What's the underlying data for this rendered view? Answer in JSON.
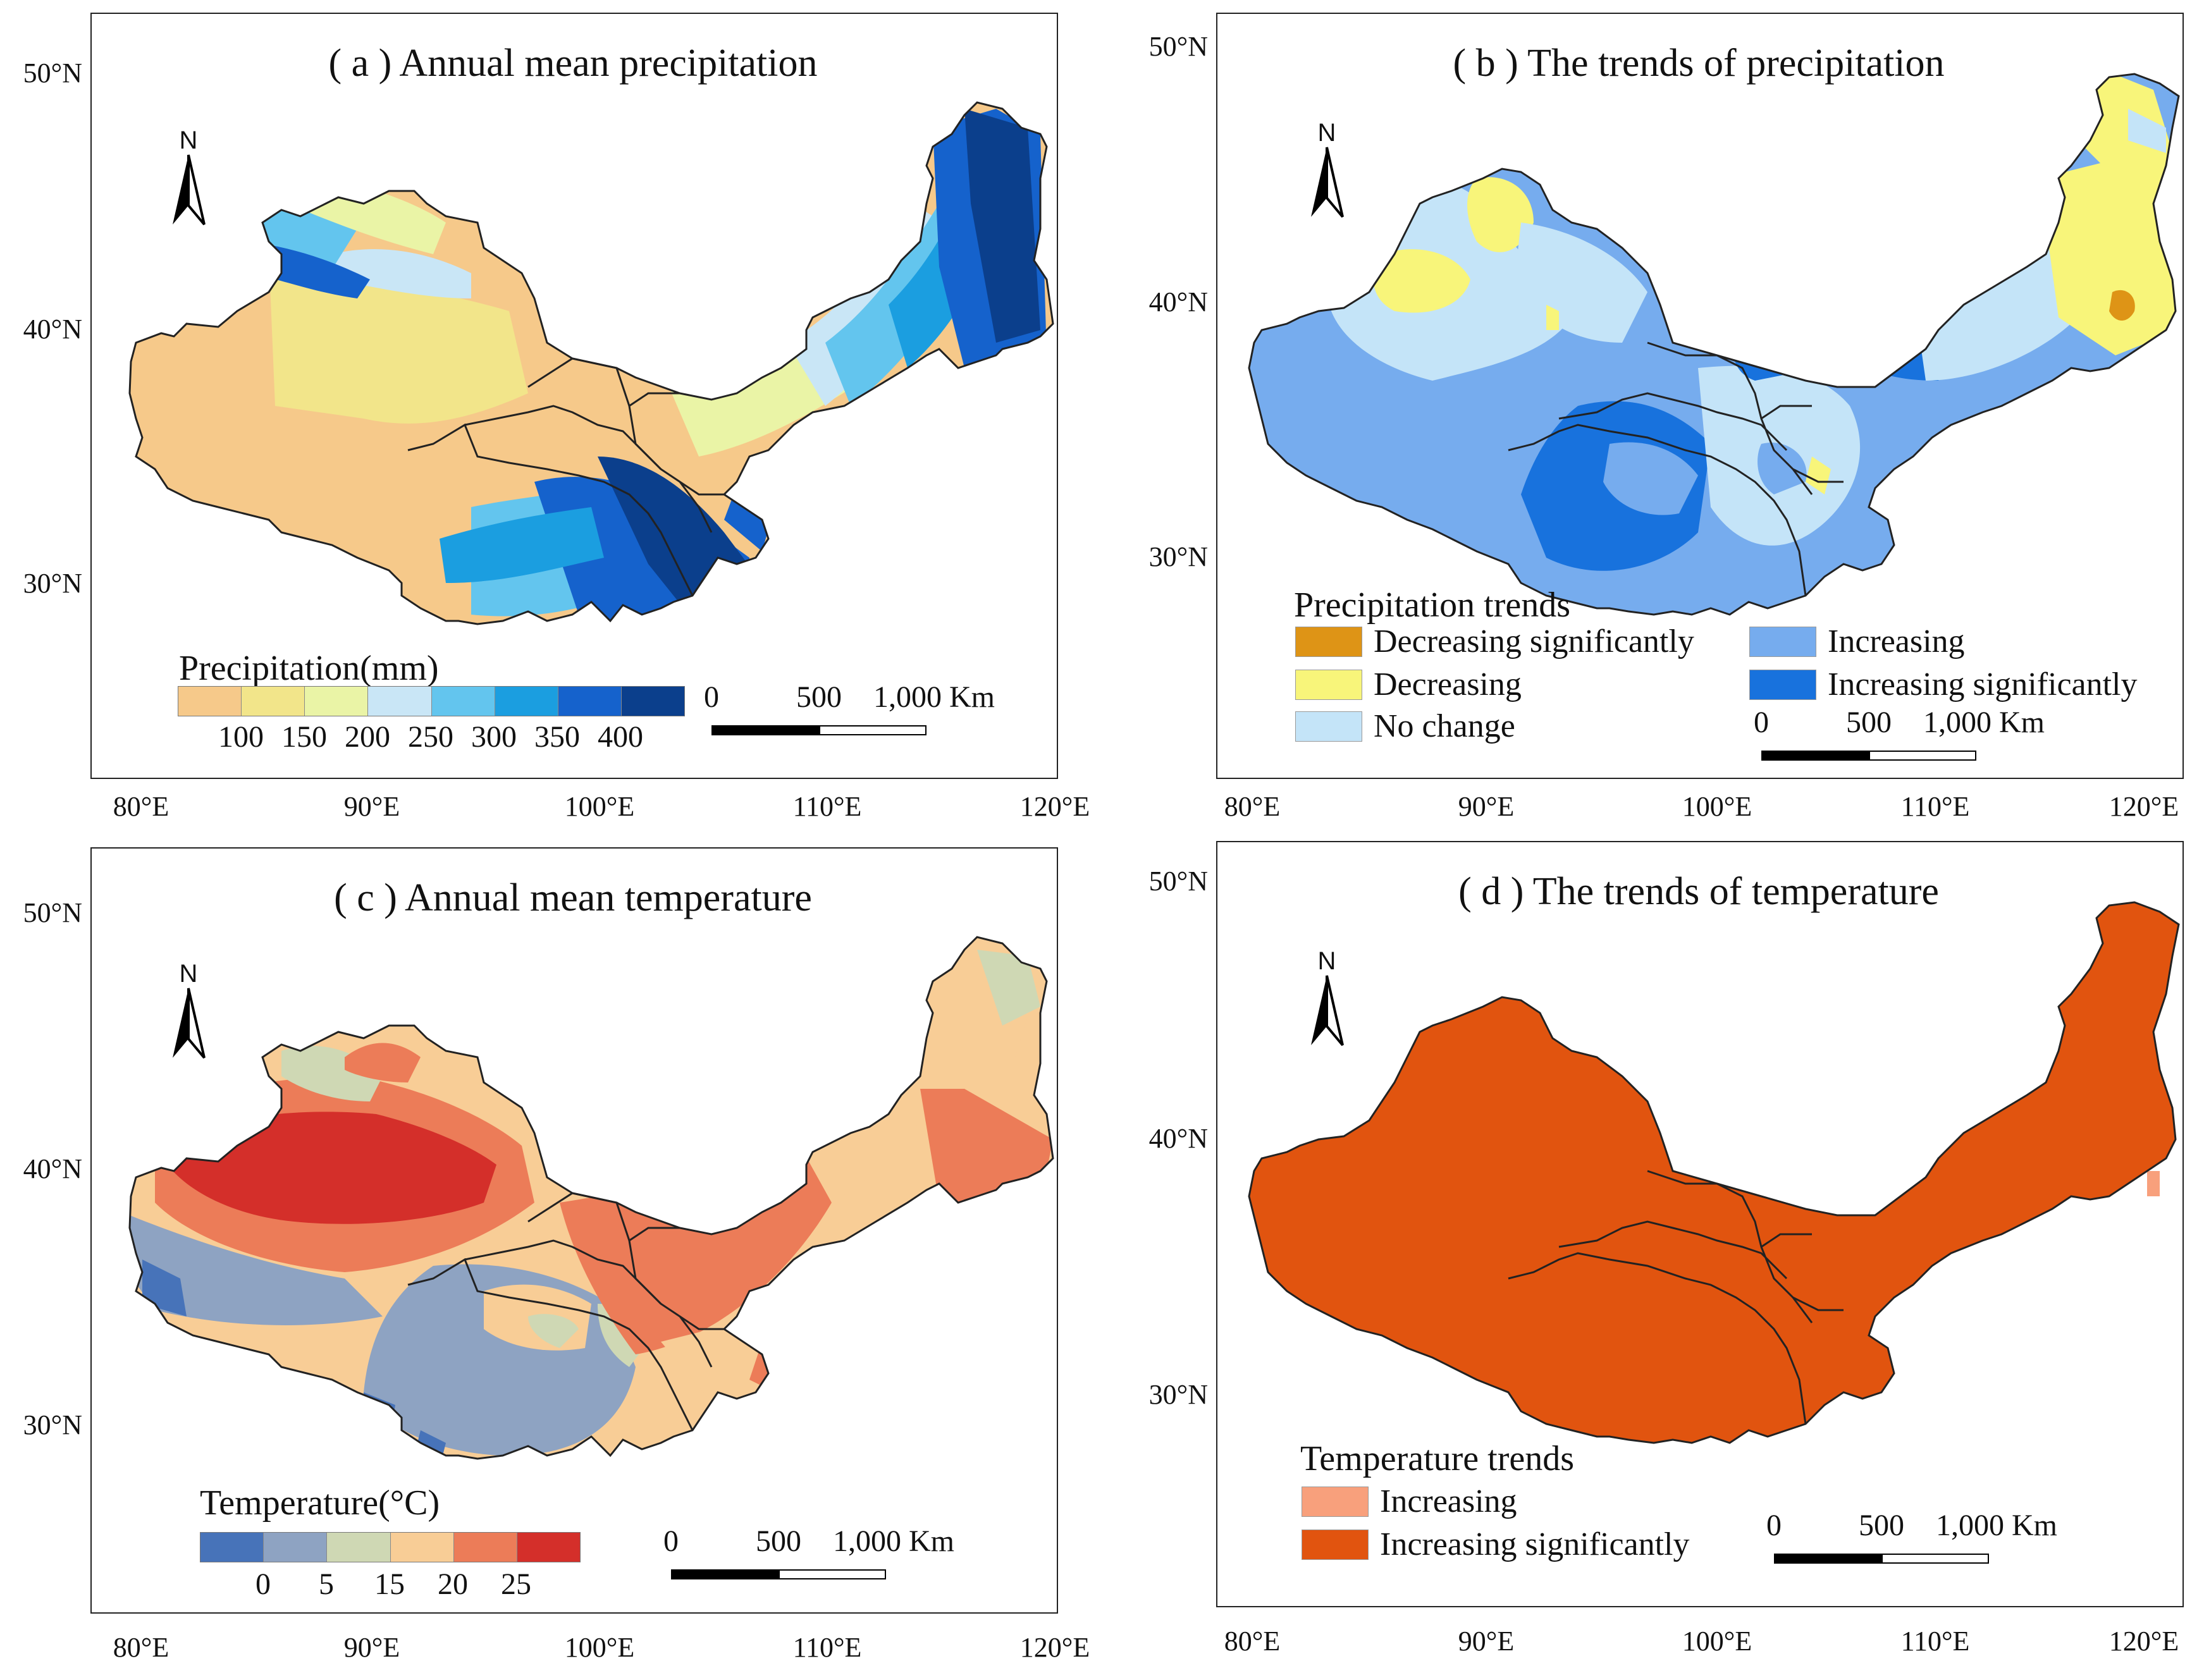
{
  "lat_labels": [
    "50°N",
    "40°N",
    "30°N"
  ],
  "lon_labels": [
    "80°E",
    "90°E",
    "100°E",
    "110°E",
    "120°E"
  ],
  "north_label": "N",
  "scale_bar": {
    "labels": [
      "0",
      "500",
      "1,000 Km"
    ]
  },
  "panels": {
    "a": {
      "title": "( a ) Annual mean precipitation",
      "legend_title": "Precipitation(mm)",
      "breaks": [
        "100",
        "150",
        "200",
        "250",
        "300",
        "350",
        "400"
      ],
      "colors": [
        "#f6c98a",
        "#f2e58a",
        "#eaf4a6",
        "#c9e6f6",
        "#63c5ee",
        "#1b9ee0",
        "#1562cc",
        "#0b3f8c"
      ]
    },
    "b": {
      "title": "( b ) The trends of precipitation",
      "legend_title": "Precipitation trends",
      "classes": [
        {
          "label": "Decreasing significantly",
          "color": "#de9416"
        },
        {
          "label": "Decreasing",
          "color": "#f8f57a"
        },
        {
          "label": "No change",
          "color": "#c4e4f8"
        },
        {
          "label": "Increasing",
          "color": "#76acee"
        },
        {
          "label": "Increasing significantly",
          "color": "#1872dd"
        }
      ]
    },
    "c": {
      "title": "( c ) Annual mean temperature",
      "legend_title": "Temperature(°C)",
      "breaks": [
        "0",
        "5",
        "15",
        "20",
        "25"
      ],
      "colors": [
        "#4773b9",
        "#8ea3c2",
        "#cfd8b4",
        "#f8cd96",
        "#ec7c58",
        "#d42f2a"
      ]
    },
    "d": {
      "title": "( d ) The trends of temperature",
      "legend_title": "Temperature trends",
      "classes": [
        {
          "label": "Increasing",
          "color": "#f8a07c"
        },
        {
          "label": "Increasing significantly",
          "color": "#e1540f"
        }
      ]
    }
  }
}
